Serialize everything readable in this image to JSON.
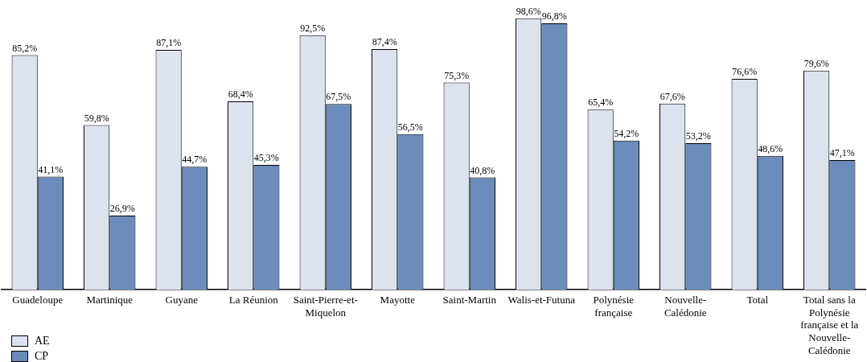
{
  "chart_data": {
    "type": "bar",
    "categories": [
      "Guadeloupe",
      "Martinique",
      "Guyane",
      "La Réunion",
      "Saint-Pierre-et-Miquelon",
      "Mayotte",
      "Saint-Martin",
      "Walis-et-Futuna",
      "Polynésie française",
      "Nouvelle-Calédonie",
      "Total",
      "Total sans la Polynésie française et la Nouvelle-Calédonie"
    ],
    "series": [
      {
        "name": "AE",
        "color": "#dde3ee",
        "values": [
          85.2,
          59.8,
          87.1,
          68.4,
          92.5,
          87.4,
          75.3,
          98.6,
          65.4,
          67.6,
          76.6,
          79.6
        ],
        "value_labels": [
          "85,2%",
          "59,8%",
          "87,1%",
          "68,4%",
          "92,5%",
          "87,4%",
          "75,3%",
          "98,6%",
          "65,4%",
          "67,6%",
          "76,6%",
          "79,6%"
        ]
      },
      {
        "name": "CP",
        "color": "#6b8cba",
        "values": [
          41.1,
          26.9,
          44.7,
          45.3,
          67.5,
          56.5,
          40.8,
          96.8,
          54.2,
          53.2,
          48.6,
          47.1
        ],
        "value_labels": [
          "41,1%",
          "26,9%",
          "44,7%",
          "45,3%",
          "67,5%",
          "56,5%",
          "40,8%",
          "96,8%",
          "54,2%",
          "53,2%",
          "48,6%",
          "47,1%"
        ]
      }
    ],
    "legend": "bottom left",
    "grid": false,
    "tick_labels": "x"
  }
}
